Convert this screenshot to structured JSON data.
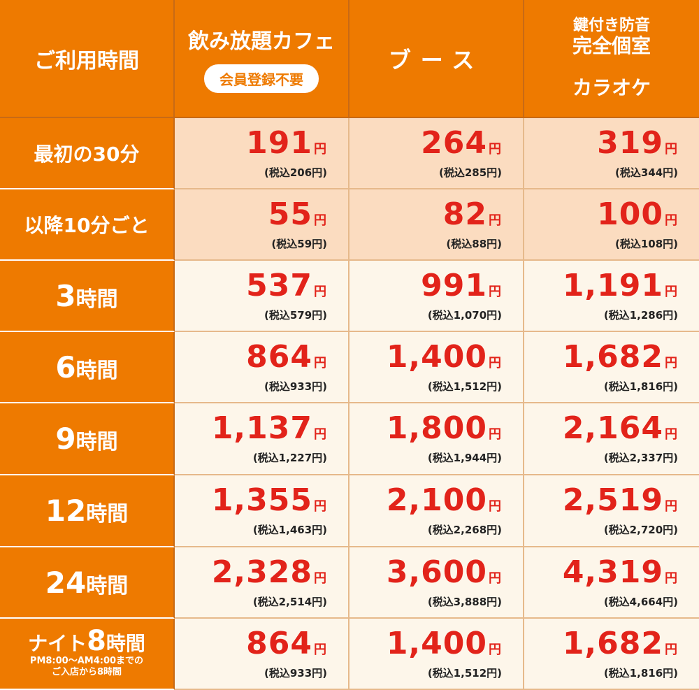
{
  "header": {
    "time_col": "ご利用時間",
    "cafe": {
      "title": "飲み放題カフェ",
      "badge": "会員登録不要"
    },
    "booth": {
      "title": "ブース"
    },
    "karaoke": {
      "line1": "鍵付き防音",
      "line2": "完全個室",
      "line3": "カラオケ"
    }
  },
  "rows": [
    {
      "label": "最初の30分",
      "style": "small",
      "shade": "peach",
      "cafe": {
        "price": "191",
        "tax": "(税込206円)"
      },
      "booth": {
        "price": "264",
        "tax": "(税込285円)"
      },
      "karaoke": {
        "price": "319",
        "tax": "(税込344円)"
      }
    },
    {
      "label": "以降10分ごと",
      "style": "small",
      "shade": "peach",
      "cafe": {
        "price": "55",
        "tax": "(税込59円)"
      },
      "booth": {
        "price": "82",
        "tax": "(税込88円)"
      },
      "karaoke": {
        "price": "100",
        "tax": "(税込108円)"
      }
    },
    {
      "num": "3",
      "unit": "時間",
      "style": "big",
      "shade": "cream",
      "cafe": {
        "price": "537",
        "tax": "(税込579円)"
      },
      "booth": {
        "price": "991",
        "tax": "(税込1,070円)"
      },
      "karaoke": {
        "price": "1,191",
        "tax": "(税込1,286円)"
      }
    },
    {
      "num": "6",
      "unit": "時間",
      "style": "big",
      "shade": "cream",
      "cafe": {
        "price": "864",
        "tax": "(税込933円)"
      },
      "booth": {
        "price": "1,400",
        "tax": "(税込1,512円)"
      },
      "karaoke": {
        "price": "1,682",
        "tax": "(税込1,816円)"
      }
    },
    {
      "num": "9",
      "unit": "時間",
      "style": "big",
      "shade": "cream",
      "cafe": {
        "price": "1,137",
        "tax": "(税込1,227円)"
      },
      "booth": {
        "price": "1,800",
        "tax": "(税込1,944円)"
      },
      "karaoke": {
        "price": "2,164",
        "tax": "(税込2,337円)"
      }
    },
    {
      "num": "12",
      "unit": "時間",
      "style": "big",
      "shade": "cream",
      "cafe": {
        "price": "1,355",
        "tax": "(税込1,463円)"
      },
      "booth": {
        "price": "2,100",
        "tax": "(税込2,268円)"
      },
      "karaoke": {
        "price": "2,519",
        "tax": "(税込2,720円)"
      }
    },
    {
      "num": "24",
      "unit": "時間",
      "style": "big",
      "shade": "cream",
      "cafe": {
        "price": "2,328",
        "tax": "(税込2,514円)"
      },
      "booth": {
        "price": "3,600",
        "tax": "(税込3,888円)"
      },
      "karaoke": {
        "price": "4,319",
        "tax": "(税込4,664円)"
      }
    },
    {
      "night_prefix": "ナイト",
      "num": "8",
      "unit": "時間",
      "note1": "PM8:00〜AM4:00までの",
      "note2": "ご入店から8時間",
      "style": "night",
      "shade": "cream",
      "cafe": {
        "price": "864",
        "tax": "(税込933円)"
      },
      "booth": {
        "price": "1,400",
        "tax": "(税込1,512円)"
      },
      "karaoke": {
        "price": "1,682",
        "tax": "(税込1,816円)"
      }
    }
  ],
  "yen": "円",
  "colors": {
    "orange": "#ee7a00",
    "red": "#e2231a",
    "peach": "#fbdcc0",
    "cream": "#fdf6ea"
  }
}
